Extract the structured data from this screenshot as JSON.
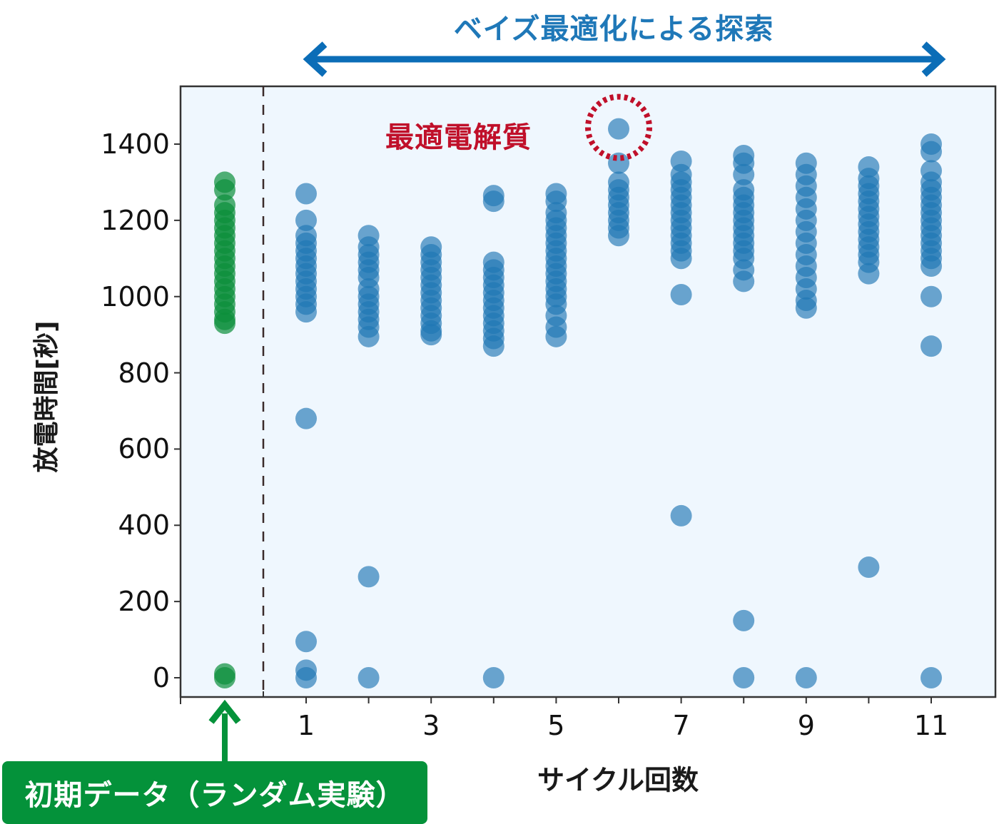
{
  "header": {
    "title": "ベイズ最適化による探索",
    "arrow_color": "#0b6db7"
  },
  "annotations": {
    "best_label": "最適電解質",
    "best_color": "#c0102a",
    "initial_badge": "初期データ（ランダム実験）",
    "initial_color": "#04923a"
  },
  "axes": {
    "ylabel": "放電時間[秒]",
    "xlabel": "サイクル回数",
    "yticks": [
      "0",
      "200",
      "400",
      "600",
      "800",
      "1000",
      "1200",
      "1400"
    ],
    "xticks": [
      "1",
      "3",
      "5",
      "7",
      "9",
      "11"
    ]
  },
  "chart_data": {
    "type": "scatter",
    "title": "ベイズ最適化による探索",
    "xlabel": "サイクル回数",
    "ylabel": "放電時間[秒]",
    "xlim": [
      -1,
      12.5
    ],
    "ylim": [
      -50,
      1560
    ],
    "xticks": [
      1,
      3,
      5,
      7,
      9,
      11
    ],
    "yticks": [
      0,
      200,
      400,
      600,
      800,
      1000,
      1200,
      1400
    ],
    "grid": false,
    "background": "#eff7fe",
    "divider_x": 0.3,
    "series": [
      {
        "name": "初期データ（ランダム実験）",
        "color": "#0b8f3a",
        "x_position": -0.3,
        "points": [
          {
            "x": 0,
            "y": [
              1300,
              1280,
              1240,
              1220,
              1200,
              1180,
              1160,
              1140,
              1120,
              1100,
              1080,
              1060,
              1040,
              1020,
              1000,
              980,
              960,
              940,
              930,
              10,
              0
            ]
          }
        ]
      },
      {
        "name": "ベイズ最適化",
        "color": "#1f77b4",
        "points": [
          {
            "x": 1,
            "y": [
              1270,
              1200,
              1160,
              1140,
              1120,
              1100,
              1080,
              1060,
              1040,
              1020,
              1000,
              980,
              960,
              680,
              95,
              20,
              0
            ]
          },
          {
            "x": 2,
            "y": [
              1160,
              1130,
              1110,
              1090,
              1070,
              1050,
              1020,
              1000,
              980,
              960,
              940,
              920,
              895,
              265,
              0
            ]
          },
          {
            "x": 3,
            "y": [
              1130,
              1110,
              1090,
              1070,
              1050,
              1030,
              1010,
              990,
              970,
              950,
              930,
              910,
              900
            ]
          },
          {
            "x": 4,
            "y": [
              1265,
              1250,
              1090,
              1070,
              1050,
              1030,
              1010,
              990,
              970,
              950,
              930,
              910,
              890,
              870,
              0
            ]
          },
          {
            "x": 5,
            "y": [
              1270,
              1250,
              1220,
              1200,
              1180,
              1160,
              1140,
              1120,
              1100,
              1080,
              1060,
              1040,
              1020,
              1000,
              980,
              950,
              920,
              895
            ]
          },
          {
            "x": 6,
            "y": [
              1440,
              1350,
              1300,
              1280,
              1260,
              1240,
              1220,
              1200,
              1180,
              1160
            ]
          },
          {
            "x": 7,
            "y": [
              1355,
              1320,
              1300,
              1280,
              1260,
              1240,
              1220,
              1200,
              1180,
              1160,
              1140,
              1120,
              1100,
              1005,
              425
            ]
          },
          {
            "x": 8,
            "y": [
              1370,
              1350,
              1320,
              1280,
              1260,
              1240,
              1220,
              1200,
              1180,
              1160,
              1140,
              1120,
              1100,
              1070,
              1040,
              150,
              0
            ]
          },
          {
            "x": 9,
            "y": [
              1350,
              1320,
              1290,
              1260,
              1230,
              1200,
              1170,
              1140,
              1110,
              1080,
              1050,
              1020,
              990,
              970,
              0
            ]
          },
          {
            "x": 10,
            "y": [
              1340,
              1310,
              1290,
              1270,
              1250,
              1230,
              1210,
              1190,
              1170,
              1150,
              1130,
              1110,
              1090,
              1060,
              290
            ]
          },
          {
            "x": 11,
            "y": [
              1400,
              1380,
              1330,
              1300,
              1280,
              1260,
              1240,
              1220,
              1200,
              1180,
              1160,
              1140,
              1120,
              1100,
              1080,
              1000,
              870,
              0
            ]
          }
        ]
      }
    ],
    "annotations": [
      {
        "text": "最適電解質",
        "x": 6,
        "y": 1440,
        "style": "red dashed circle"
      },
      {
        "text": "初期データ（ランダム実験）",
        "x": -0.3,
        "y": 0,
        "style": "green arrow + badge"
      },
      {
        "text": "ベイズ最適化による探索",
        "x_range": [
          1,
          11
        ],
        "style": "blue double arrow"
      }
    ]
  }
}
